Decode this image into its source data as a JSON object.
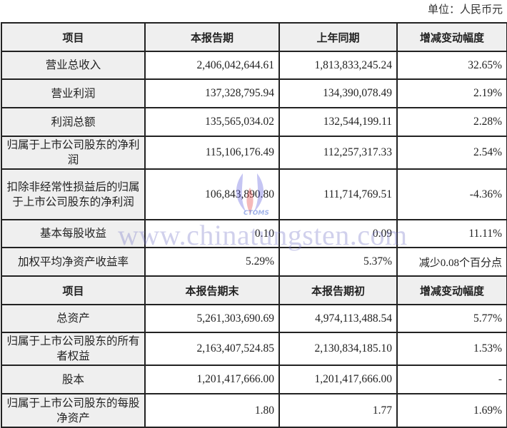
{
  "unit_label": "单位：人民币元",
  "header1": [
    "项目",
    "本报告期",
    "上年同期",
    "增减变动幅度"
  ],
  "rows1": [
    {
      "item": "营业总收入",
      "current": "2,406,042,644.61",
      "previous": "1,813,833,245.24",
      "change": "32.65%"
    },
    {
      "item": "营业利润",
      "current": "137,328,795.94",
      "previous": "134,390,078.49",
      "change": "2.19%"
    },
    {
      "item": "利润总额",
      "current": "135,565,034.02",
      "previous": "132,544,199.11",
      "change": "2.28%"
    },
    {
      "item": "归属于上市公司股东的净利润",
      "current": "115,106,176.49",
      "previous": "112,257,317.33",
      "change": "2.54%"
    },
    {
      "item": "扣除非经常性损益后的归属于上市公司股东的净利润",
      "current": "106,843,890.80",
      "previous": "111,714,769.51",
      "change": "-4.36%"
    },
    {
      "item": "基本每股收益",
      "current": "0.10",
      "previous": "0.09",
      "change": "11.11%"
    },
    {
      "item": "加权平均净资产收益率",
      "current": "5.29%",
      "previous": "5.37%",
      "change": "减少0.08个百分点"
    }
  ],
  "header2": [
    "项目",
    "本报告期末",
    "本报告期初",
    "增减变动幅度"
  ],
  "rows2": [
    {
      "item": "总资产",
      "current": "5,261,303,690.69",
      "previous": "4,974,113,488.54",
      "change": "5.77%"
    },
    {
      "item": "归属于上市公司股东的所有者权益",
      "current": "2,163,407,524.85",
      "previous": "2,130,834,185.10",
      "change": "1.53%"
    },
    {
      "item": "股本",
      "current": "1,201,417,666.00",
      "previous": "1,201,417,666.00",
      "change": "-"
    },
    {
      "item": "归属于上市公司股东的每股净资产",
      "current": "1.80",
      "previous": "1.77",
      "change": "1.69%"
    }
  ],
  "watermark": {
    "text": "www.chinatungsten.com",
    "logo_text": "CTOMS",
    "color": "#7878c8"
  }
}
